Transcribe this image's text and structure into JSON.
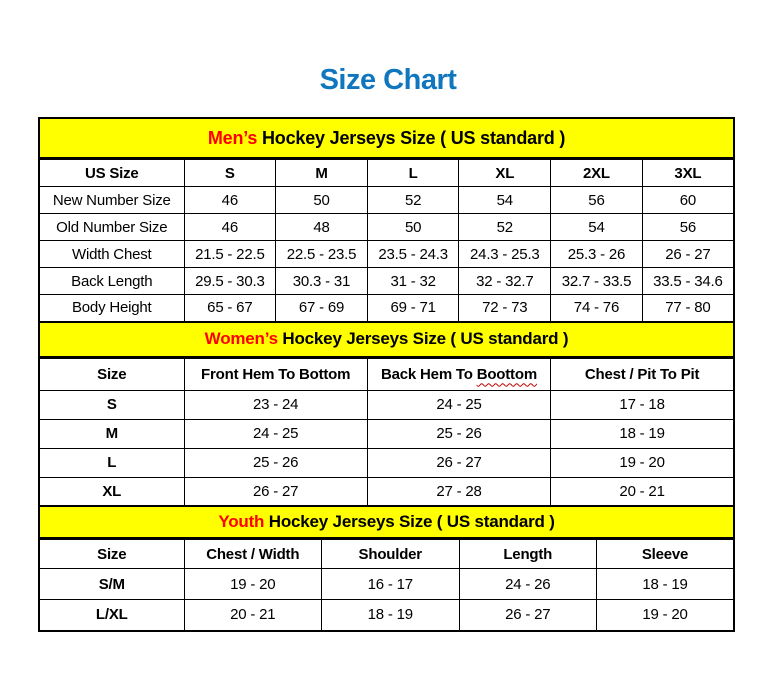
{
  "page": {
    "title": "Size Chart"
  },
  "colors": {
    "title_blue": "#1077be",
    "banner_yellow": "#ffff00",
    "banner_highlight_red": "#ff0000",
    "spellcheck_wavy_red": "#c00000",
    "border_black": "#000000"
  },
  "chart_data": [
    {
      "type": "table",
      "title_highlight": "Men’s",
      "title_rest": " Hockey Jerseys Size ( US standard )",
      "columns": [
        {
          "label": "US Size"
        },
        {
          "label": "S"
        },
        {
          "label": "M"
        },
        {
          "label": "L"
        },
        {
          "label": "XL"
        },
        {
          "label": "2XL"
        },
        {
          "label": "3XL"
        }
      ],
      "row_labels_bold": false,
      "rows": [
        {
          "label": "New Number Size",
          "values": [
            "46",
            "50",
            "52",
            "54",
            "56",
            "60"
          ]
        },
        {
          "label": "Old Number Size",
          "values": [
            "46",
            "48",
            "50",
            "52",
            "54",
            "56"
          ]
        },
        {
          "label": "Width Chest",
          "values": [
            "21.5 - 22.5",
            "22.5 - 23.5",
            "23.5 - 24.3",
            "24.3 - 25.3",
            "25.3 - 26",
            "26 - 27"
          ]
        },
        {
          "label": "Back Length",
          "values": [
            "29.5 - 30.3",
            "30.3 - 31",
            "31 - 32",
            "32 - 32.7",
            "32.7 - 33.5",
            "33.5 - 34.6"
          ]
        },
        {
          "label": "Body Height",
          "values": [
            "65 - 67",
            "67 - 69",
            "69 - 71",
            "72 - 73",
            "74 - 76",
            "77 - 80"
          ]
        }
      ]
    },
    {
      "type": "table",
      "title_highlight": "Women’s",
      "title_rest": " Hockey Jerseys Size ( US standard )",
      "columns": [
        {
          "label": "Size"
        },
        {
          "label": "Front Hem To Bottom"
        },
        {
          "label": "Back Hem To Boottom",
          "wavy_word": "Boottom"
        },
        {
          "label": "Chest / Pit To Pit"
        }
      ],
      "row_labels_bold": true,
      "rows": [
        {
          "label": "S",
          "values": [
            "23 - 24",
            "24 - 25",
            "17 - 18"
          ]
        },
        {
          "label": "M",
          "values": [
            "24 - 25",
            "25 - 26",
            "18 - 19"
          ]
        },
        {
          "label": "L",
          "values": [
            "25 - 26",
            "26 - 27",
            "19 - 20"
          ]
        },
        {
          "label": "XL",
          "values": [
            "26 - 27",
            "27 - 28",
            "20 - 21"
          ]
        }
      ]
    },
    {
      "type": "table",
      "title_highlight": "Youth",
      "title_rest": " Hockey Jerseys Size ( US standard )",
      "columns": [
        {
          "label": "Size"
        },
        {
          "label": "Chest / Width"
        },
        {
          "label": "Shoulder"
        },
        {
          "label": "Length"
        },
        {
          "label": "Sleeve"
        }
      ],
      "row_labels_bold": true,
      "rows": [
        {
          "label": "S/M",
          "values": [
            "19 - 20",
            "16 - 17",
            "24 - 26",
            "18 - 19"
          ]
        },
        {
          "label": "L/XL",
          "values": [
            "20 - 21",
            "18 - 19",
            "26 - 27",
            "19 - 20"
          ]
        }
      ]
    }
  ]
}
